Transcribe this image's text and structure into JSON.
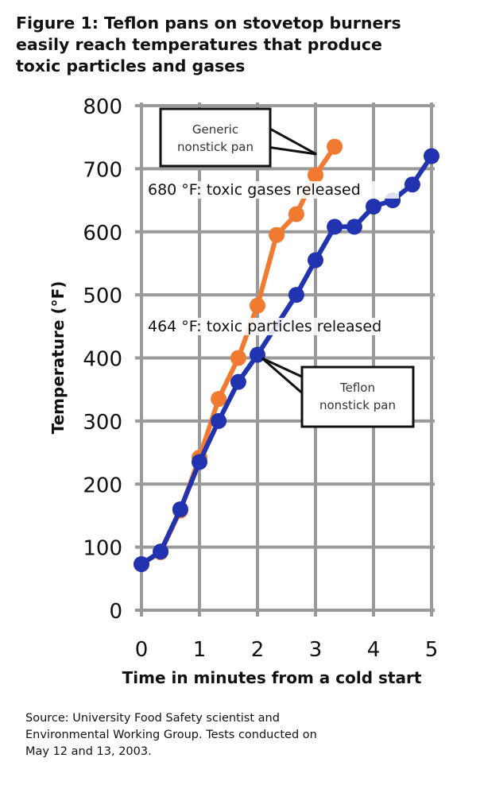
{
  "title_lines": [
    "Figure 1: Teflon pans on stovetop burners",
    "easily reach temperatures that produce",
    "toxic particles and gases"
  ],
  "source_lines": [
    "Source: University Food Safety scientist and",
    "Environmental Working Group. Tests conducted on",
    "May 12 and 13, 2003."
  ],
  "chart_data": {
    "type": "line",
    "title": "Figure 1: Teflon pans on stovetop burners easily reach temperatures that produce toxic particles and gases",
    "xlabel": "Time in minutes from a cold start",
    "ylabel": "Temperature (°F)",
    "xlim": [
      0,
      5
    ],
    "ylim": [
      0,
      800
    ],
    "xticks": [
      "0",
      "1",
      "2",
      "3",
      "4",
      "5"
    ],
    "yticks": [
      "0",
      "100",
      "200",
      "300",
      "400",
      "500",
      "600",
      "700",
      "800"
    ],
    "grid": true,
    "series": [
      {
        "name": "Generic nonstick pan",
        "color": "#f07a30",
        "x": [
          0,
          0.33,
          0.67,
          1,
          1.33,
          1.67,
          2,
          2.33,
          2.67,
          3,
          3.33
        ],
        "y": [
          73,
          92,
          158,
          242,
          335,
          400,
          483,
          595,
          628,
          690,
          735
        ]
      },
      {
        "name": "Teflon nonstick pan",
        "color": "#2233b0",
        "x": [
          0,
          0.33,
          0.67,
          1,
          1.33,
          1.67,
          2,
          2.67,
          3,
          3.33,
          3.67,
          4,
          4.33,
          4.67,
          5
        ],
        "y": [
          73,
          93,
          160,
          235,
          300,
          362,
          405,
          500,
          555,
          608,
          608,
          640,
          650,
          675,
          720
        ]
      }
    ],
    "annotations": [
      {
        "text": "680 °F: toxic gases released",
        "y": 680
      },
      {
        "text": "464 °F: toxic particles released",
        "y": 464
      }
    ],
    "callouts": [
      {
        "lines": [
          "Generic",
          "nonstick pan"
        ],
        "series": "Generic nonstick pan"
      },
      {
        "lines": [
          "Teflon",
          "nonstick pan"
        ],
        "series": "Teflon nonstick pan"
      }
    ]
  }
}
